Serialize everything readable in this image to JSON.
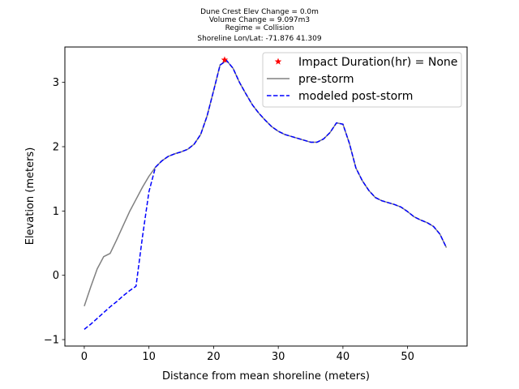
{
  "chart_data": {
    "type": "line",
    "title_lines": [
      "Dune Crest Elev Change = 0.0m",
      "Volume Change = 9.097m3",
      "Regime = Collision",
      "Shoreline Lon/Lat: -71.876 41.309"
    ],
    "xlabel": "Distance from mean shoreline (meters)",
    "ylabel": "Elevation (meters)",
    "xlim": [
      -3,
      59.2
    ],
    "ylim": [
      -1.1,
      3.55
    ],
    "xticks": [
      0,
      10,
      20,
      30,
      40,
      50
    ],
    "yticks": [
      -1,
      0,
      1,
      2,
      3
    ],
    "grid": false,
    "legend_position": "top-right",
    "series": [
      {
        "name": "pre-storm",
        "color": "#808080",
        "style": "solid",
        "x": [
          0,
          1,
          2,
          3,
          4,
          5,
          6,
          7,
          8,
          9,
          10,
          11,
          12,
          13,
          14,
          15,
          16,
          17,
          18,
          19,
          20,
          21,
          22,
          23,
          24,
          25,
          26,
          27,
          28,
          29,
          30,
          31,
          32,
          33,
          34,
          35,
          36,
          37,
          38,
          39,
          40,
          41,
          42,
          43,
          44,
          45,
          46,
          47,
          48,
          49,
          50,
          51,
          52,
          53,
          54,
          55,
          56
        ],
        "y": [
          -0.48,
          -0.18,
          0.1,
          0.29,
          0.34,
          0.55,
          0.77,
          0.99,
          1.18,
          1.37,
          1.54,
          1.68,
          1.78,
          1.85,
          1.89,
          1.92,
          1.96,
          2.04,
          2.19,
          2.48,
          2.87,
          3.27,
          3.34,
          3.22,
          3.0,
          2.82,
          2.65,
          2.52,
          2.41,
          2.31,
          2.24,
          2.19,
          2.16,
          2.13,
          2.1,
          2.07,
          2.07,
          2.12,
          2.22,
          2.37,
          2.35,
          2.05,
          1.67,
          1.47,
          1.32,
          1.21,
          1.16,
          1.13,
          1.1,
          1.06,
          0.99,
          0.91,
          0.86,
          0.82,
          0.76,
          0.64,
          0.43
        ]
      },
      {
        "name": "modeled post-storm",
        "color": "#0000ff",
        "style": "dashed",
        "x": [
          0,
          1,
          2,
          3,
          4,
          5,
          6,
          7,
          8,
          9,
          10,
          11,
          12,
          13,
          14,
          15,
          16,
          17,
          18,
          19,
          20,
          21,
          22,
          23,
          24,
          25,
          26,
          27,
          28,
          29,
          30,
          31,
          32,
          33,
          34,
          35,
          36,
          37,
          38,
          39,
          40,
          41,
          42,
          43,
          44,
          45,
          46,
          47,
          48,
          49,
          50,
          51,
          52,
          53,
          54,
          55,
          56
        ],
        "y": [
          -0.84,
          -0.76,
          -0.67,
          -0.58,
          -0.49,
          -0.41,
          -0.32,
          -0.24,
          -0.17,
          0.6,
          1.3,
          1.68,
          1.78,
          1.85,
          1.89,
          1.92,
          1.96,
          2.04,
          2.19,
          2.48,
          2.87,
          3.27,
          3.34,
          3.22,
          3.0,
          2.82,
          2.65,
          2.52,
          2.41,
          2.31,
          2.24,
          2.19,
          2.16,
          2.13,
          2.1,
          2.07,
          2.07,
          2.12,
          2.22,
          2.37,
          2.35,
          2.05,
          1.67,
          1.47,
          1.32,
          1.21,
          1.16,
          1.13,
          1.1,
          1.06,
          0.99,
          0.91,
          0.86,
          0.82,
          0.76,
          0.64,
          0.43
        ]
      },
      {
        "name": "Impact Duration(hr) = None",
        "type": "scatter",
        "marker": "star",
        "color": "#ff0000",
        "x": [
          21.7
        ],
        "y": [
          3.35
        ]
      }
    ]
  }
}
